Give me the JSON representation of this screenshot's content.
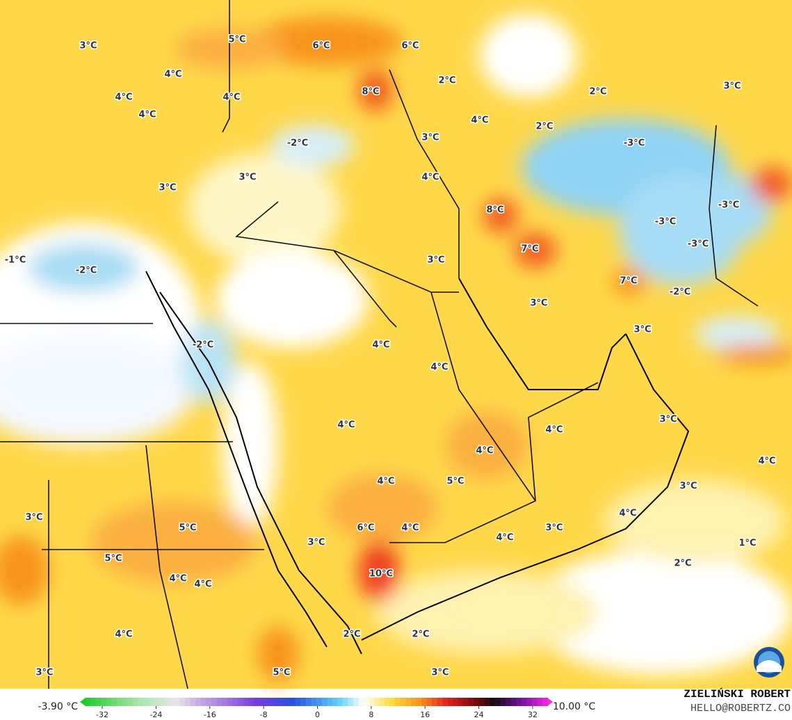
{
  "map": {
    "labels": [
      "3°C",
      "5°C",
      "6°C",
      "6°C",
      "4°C",
      "8°C",
      "2°C",
      "2°C",
      "3°C",
      "4°C",
      "4°C",
      "4°C",
      "4°C",
      "2°C",
      "-2°C",
      "3°C",
      "-3°C",
      "3°C",
      "4°C",
      "3°C",
      "-3°C",
      "8°C",
      "-3°C",
      "-3°C",
      "7°C",
      "-1°C",
      "3°C",
      "-2°C",
      "7°C",
      "-2°C",
      "3°C",
      "3°C",
      "-2°C",
      "4°C",
      "4°C",
      "3°C",
      "4°C",
      "4°C",
      "4°C",
      "4°C",
      "5°C",
      "4°C",
      "3°C",
      "4°C",
      "3°C",
      "5°C",
      "6°C",
      "4°C",
      "3°C",
      "4°C",
      "3°C",
      "1°C",
      "5°C",
      "2°C",
      "10°C",
      "4°C",
      "4°C",
      "4°C",
      "2°C",
      "2°C",
      "3°C",
      "5°C",
      "3°C"
    ]
  },
  "colorbar": {
    "min_label": "-3.90 °C",
    "max_label": "10.00 °C",
    "lim": [
      -32,
      32
    ],
    "ticks": [
      -32,
      -24,
      -16,
      -8,
      0,
      8,
      16,
      24,
      32
    ]
  },
  "credit": {
    "author": "ZIELIŃSKI ROBERT",
    "contact": "HELLO@ROBERTZ.CO"
  }
}
